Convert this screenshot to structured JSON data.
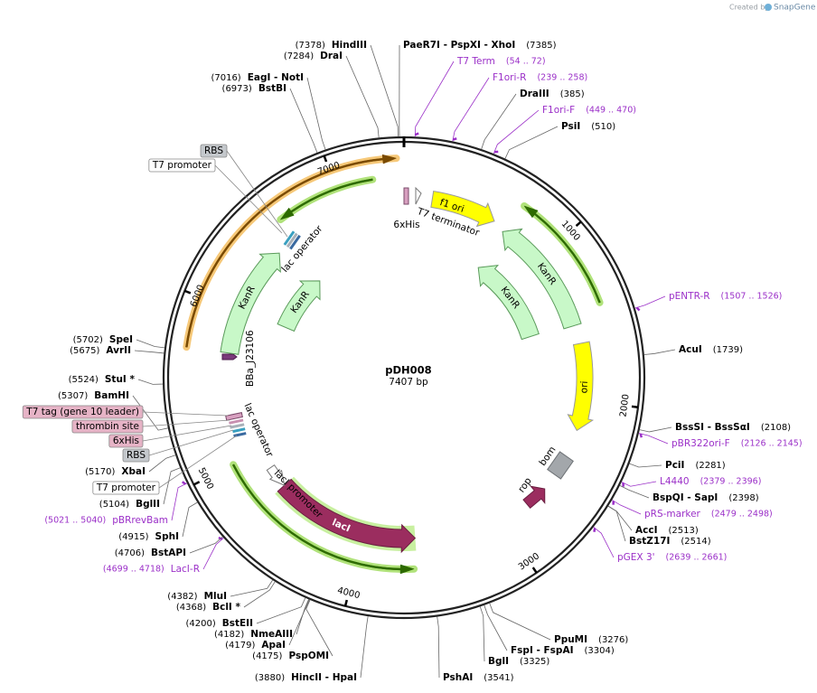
{
  "header": {
    "created_by": "Created by",
    "brand": "SnapGene"
  },
  "plasmid": {
    "name": "pDH008",
    "size": "7407 bp"
  },
  "ruler_ticks": [
    1000,
    2000,
    3000,
    4000,
    5000,
    6000,
    7000
  ],
  "sites": [
    {
      "name": "HindIII",
      "position": "(7378)",
      "color": "#000000"
    },
    {
      "name": "DraI",
      "position": "(7284)",
      "color": "#000000"
    },
    {
      "name": "PaeR7I - PspXI - XhoI",
      "position": "(7385)",
      "color": "#000000"
    },
    {
      "name": "T7 Term",
      "position": "(54 .. 72)",
      "color": "#9b30c8"
    },
    {
      "name": "F1ori-R",
      "position": "(239 .. 258)",
      "color": "#9b30c8"
    },
    {
      "name": "DraIII",
      "position": "(385)",
      "color": "#000000"
    },
    {
      "name": "F1ori-F",
      "position": "(449 .. 470)",
      "color": "#9b30c8"
    },
    {
      "name": "PsiI",
      "position": "(510)",
      "color": "#000000"
    },
    {
      "name": "EagI - NotI",
      "position": "(7016)",
      "color": "#000000"
    },
    {
      "name": "BstBI",
      "position": "(6973)",
      "color": "#000000"
    },
    {
      "name": "pENTR-R",
      "position": "(1507 .. 1526)",
      "color": "#9b30c8"
    },
    {
      "name": "AcuI",
      "position": "(1739)",
      "color": "#000000"
    },
    {
      "name": "BssSI - BssSαI",
      "position": "(2108)",
      "color": "#000000"
    },
    {
      "name": "pBR322ori-F",
      "position": "(2126 .. 2145)",
      "color": "#9b30c8"
    },
    {
      "name": "PciI",
      "position": "(2281)",
      "color": "#000000"
    },
    {
      "name": "L4440",
      "position": "(2379 .. 2396)",
      "color": "#9b30c8"
    },
    {
      "name": "BspQI - SapI",
      "position": "(2398)",
      "color": "#000000"
    },
    {
      "name": "pRS-marker",
      "position": "(2479 .. 2498)",
      "color": "#9b30c8"
    },
    {
      "name": "AccI",
      "position": "(2513)",
      "color": "#000000"
    },
    {
      "name": "BstZ17I",
      "position": "(2514)",
      "color": "#000000"
    },
    {
      "name": "pGEX 3'",
      "position": "(2639 .. 2661)",
      "color": "#9b30c8"
    },
    {
      "name": "PpuMI",
      "position": "(3276)",
      "color": "#000000"
    },
    {
      "name": "FspI - FspAI",
      "position": "(3304)",
      "color": "#000000"
    },
    {
      "name": "BglI",
      "position": "(3325)",
      "color": "#000000"
    },
    {
      "name": "PshAI",
      "position": "(3541)",
      "color": "#000000"
    },
    {
      "name": "HincII - HpaI",
      "position": "(3880)",
      "color": "#000000"
    },
    {
      "name": "PspOMI",
      "position": "(4175)",
      "color": "#000000"
    },
    {
      "name": "ApaI",
      "position": "(4179)",
      "color": "#000000"
    },
    {
      "name": "NmeAIII",
      "position": "(4182)",
      "color": "#000000"
    },
    {
      "name": "BstEII",
      "position": "(4200)",
      "color": "#000000"
    },
    {
      "name": "BclI *",
      "position": "(4368)",
      "color": "#000000"
    },
    {
      "name": "MluI",
      "position": "(4382)",
      "color": "#000000"
    },
    {
      "name": "LacI-R",
      "position": "(4699 .. 4718)",
      "color": "#9b30c8"
    },
    {
      "name": "BstAPI",
      "position": "(4706)",
      "color": "#000000"
    },
    {
      "name": "SphI",
      "position": "(4915)",
      "color": "#000000"
    },
    {
      "name": "pBRrevBam",
      "position": "(5021 .. 5040)",
      "color": "#9b30c8"
    },
    {
      "name": "BglII",
      "position": "(5104)",
      "color": "#000000"
    },
    {
      "name": "XbaI",
      "position": "(5170)",
      "color": "#000000"
    },
    {
      "name": "StuI *",
      "position": "(5524)",
      "color": "#000000"
    },
    {
      "name": "BamHI",
      "position": "(5307)",
      "color": "#000000"
    },
    {
      "name": "AvrII",
      "position": "(5675)",
      "color": "#000000"
    },
    {
      "name": "SpeI",
      "position": "(5702)",
      "color": "#000000"
    }
  ],
  "callouts": [
    {
      "label": "RBS",
      "fill": "#c4c8cc"
    },
    {
      "label": "T7 promoter",
      "fill": "#ffffff"
    },
    {
      "label": "T7 tag (gene 10 leader)",
      "fill": "#e6b3c6"
    },
    {
      "label": "thrombin site",
      "fill": "#e6b3c6"
    },
    {
      "label": "6xHis",
      "fill": "#e6b3c6"
    },
    {
      "label": "RBS",
      "fill": "#c4c8cc"
    },
    {
      "label": "T7 promoter",
      "fill": "#ffffff"
    }
  ],
  "features": [
    {
      "label": "f1 ori"
    },
    {
      "label": "T7 terminator"
    },
    {
      "label": "6xHis"
    },
    {
      "label": "KanR"
    },
    {
      "label": "KanR"
    },
    {
      "label": "KanR"
    },
    {
      "label": "KanR"
    },
    {
      "label": "ori"
    },
    {
      "label": "bom"
    },
    {
      "label": "rop"
    },
    {
      "label": "lacI"
    },
    {
      "label": "lacI promoter"
    },
    {
      "label": "lac operator"
    },
    {
      "label": "lac operator"
    },
    {
      "label": "BBa_J23106"
    }
  ]
}
